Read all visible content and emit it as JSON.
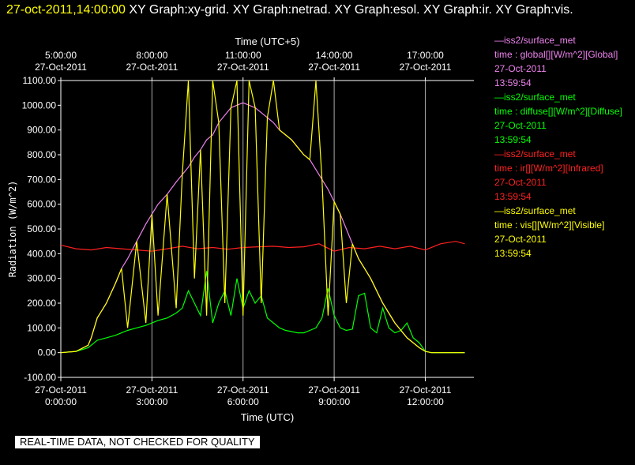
{
  "header": {
    "timestamp": "27-oct-2011,14:00:00",
    "graphs": " XY Graph:xy-grid.  XY Graph:netrad.  XY Graph:esol.  XY Graph:ir.  XY Graph:vis."
  },
  "legend": [
    {
      "source": "—iss2/surface_met",
      "field": "time : global[][W/m^2][Global]",
      "date": "27-Oct-2011",
      "time": "13:59:54",
      "color": "#ee82ee"
    },
    {
      "source": "—iss2/surface_met",
      "field": "time : diffuse[][W/m^2][Diffuse]",
      "date": "27-Oct-2011",
      "time": "13:59:54",
      "color": "#00ff00"
    },
    {
      "source": "—iss2/surface_met",
      "field": "time : ir[][W/m^2][Infrared]",
      "date": "27-Oct-2011",
      "time": "13:59:54",
      "color": "#ff2020"
    },
    {
      "source": "—iss2/surface_met",
      "field": "time : vis[][W/m^2][Visible]",
      "date": "27-Oct-2011",
      "time": "13:59:54",
      "color": "#ffff00"
    }
  ],
  "disclaimer": "REAL-TIME DATA, NOT CHECKED FOR QUALITY",
  "chart_data": {
    "type": "line",
    "ylabel": "Radiation (W/m^2)",
    "xlabel_bottom": "Time (UTC)",
    "xlabel_top": "Time (UTC+5)",
    "ylim": [
      -100,
      1100
    ],
    "xlim_hours_utc": [
      0,
      13.6
    ],
    "yticks": [
      "-100.00",
      "0.00",
      "100.00",
      "200.00",
      "300.00",
      "400.00",
      "500.00",
      "600.00",
      "700.00",
      "800.00",
      "900.00",
      "1000.00",
      "1100.00"
    ],
    "xticks_bottom": [
      {
        "date": "27-Oct-2011",
        "time": "0:00:00",
        "hour": 0
      },
      {
        "date": "27-Oct-2011",
        "time": "3:00:00",
        "hour": 3
      },
      {
        "date": "27-Oct-2011",
        "time": "6:00:00",
        "hour": 6
      },
      {
        "date": "27-Oct-2011",
        "time": "9:00:00",
        "hour": 9
      },
      {
        "date": "27-Oct-2011",
        "time": "12:00:00",
        "hour": 12
      }
    ],
    "xticks_top": [
      {
        "time": "5:00:00",
        "date": "27-Oct-2011",
        "hour": 0
      },
      {
        "time": "8:00:00",
        "date": "27-Oct-2011",
        "hour": 3
      },
      {
        "time": "11:00:00",
        "date": "27-Oct-2011",
        "hour": 6
      },
      {
        "time": "14:00:00",
        "date": "27-Oct-2011",
        "hour": 9
      },
      {
        "time": "17:00:00",
        "date": "27-Oct-2011",
        "hour": 12
      }
    ],
    "grid": true,
    "series": [
      {
        "name": "global",
        "color": "#ee82ee",
        "x": [
          0.0,
          0.5,
          0.9,
          1.0,
          1.2,
          1.5,
          1.8,
          2.0,
          2.2,
          2.5,
          2.8,
          3.0,
          3.2,
          3.5,
          3.8,
          4.0,
          4.2,
          4.4,
          4.6,
          4.8,
          5.0,
          5.2,
          5.4,
          5.6,
          5.8,
          6.0,
          6.2,
          6.4,
          6.6,
          6.8,
          7.0,
          7.2,
          7.4,
          7.6,
          7.8,
          8.0,
          8.2,
          8.4,
          8.6,
          8.8,
          9.0,
          9.2,
          9.4,
          9.6,
          9.8,
          10.0,
          10.2,
          10.4,
          10.6,
          10.8,
          11.0,
          11.2,
          11.4,
          11.6,
          11.8,
          12.0,
          12.2,
          12.5,
          13.0,
          13.3
        ],
        "y": [
          0,
          5,
          30,
          60,
          140,
          200,
          280,
          340,
          380,
          450,
          520,
          560,
          600,
          640,
          690,
          720,
          750,
          790,
          820,
          860,
          880,
          930,
          960,
          990,
          1000,
          1010,
          1000,
          990,
          970,
          950,
          930,
          900,
          880,
          860,
          830,
          800,
          780,
          740,
          700,
          660,
          610,
          560,
          500,
          440,
          380,
          340,
          300,
          250,
          200,
          160,
          120,
          90,
          60,
          40,
          20,
          5,
          0,
          0,
          0,
          0
        ]
      },
      {
        "name": "diffuse",
        "color": "#00ff00",
        "x": [
          0.0,
          0.5,
          0.9,
          1.0,
          1.2,
          1.5,
          1.8,
          2.0,
          2.2,
          2.5,
          2.8,
          3.0,
          3.2,
          3.5,
          3.8,
          4.0,
          4.2,
          4.4,
          4.6,
          4.8,
          5.0,
          5.2,
          5.4,
          5.6,
          5.8,
          6.0,
          6.2,
          6.4,
          6.6,
          6.8,
          7.0,
          7.2,
          7.4,
          7.6,
          7.8,
          8.0,
          8.2,
          8.4,
          8.6,
          8.8,
          9.0,
          9.2,
          9.4,
          9.6,
          9.8,
          10.0,
          10.2,
          10.4,
          10.6,
          10.8,
          11.0,
          11.2,
          11.4,
          11.6,
          11.8,
          12.0,
          12.2,
          12.5,
          13.0,
          13.3
        ],
        "y": [
          0,
          5,
          20,
          30,
          50,
          60,
          70,
          80,
          90,
          100,
          110,
          120,
          130,
          140,
          160,
          180,
          250,
          200,
          150,
          330,
          120,
          200,
          250,
          150,
          300,
          180,
          250,
          200,
          230,
          140,
          120,
          100,
          90,
          85,
          80,
          80,
          90,
          100,
          140,
          260,
          150,
          100,
          90,
          95,
          230,
          240,
          100,
          80,
          180,
          100,
          80,
          90,
          120,
          60,
          40,
          5,
          0,
          0,
          0,
          0
        ]
      },
      {
        "name": "ir",
        "color": "#ff2020",
        "x": [
          0.0,
          0.5,
          1.0,
          1.5,
          2.0,
          2.5,
          3.0,
          3.5,
          4.0,
          4.5,
          5.0,
          5.5,
          6.0,
          6.5,
          7.0,
          7.5,
          8.0,
          8.5,
          9.0,
          9.5,
          10.0,
          10.5,
          11.0,
          11.5,
          12.0,
          12.5,
          13.0,
          13.3
        ],
        "y": [
          435,
          420,
          415,
          425,
          420,
          415,
          410,
          420,
          430,
          420,
          425,
          418,
          425,
          428,
          430,
          425,
          428,
          440,
          410,
          425,
          420,
          430,
          420,
          430,
          415,
          440,
          450,
          440
        ]
      },
      {
        "name": "vis",
        "color": "#ffff00",
        "x": [
          0.0,
          0.5,
          0.9,
          1.0,
          1.2,
          1.5,
          1.8,
          2.0,
          2.2,
          2.5,
          2.8,
          3.0,
          3.2,
          3.5,
          3.8,
          4.0,
          4.2,
          4.4,
          4.6,
          4.8,
          5.0,
          5.2,
          5.4,
          5.6,
          5.8,
          6.0,
          6.2,
          6.4,
          6.6,
          6.8,
          7.0,
          7.2,
          7.4,
          7.6,
          7.8,
          8.0,
          8.2,
          8.4,
          8.6,
          8.8,
          9.0,
          9.2,
          9.4,
          9.6,
          9.8,
          10.0,
          10.2,
          10.4,
          10.6,
          10.8,
          11.0,
          11.2,
          11.4,
          11.6,
          11.8,
          12.0,
          12.2,
          12.5,
          13.0,
          13.3
        ],
        "y": [
          0,
          5,
          30,
          60,
          140,
          200,
          280,
          340,
          100,
          450,
          120,
          560,
          150,
          640,
          180,
          720,
          1100,
          300,
          820,
          150,
          1100,
          930,
          200,
          990,
          1100,
          150,
          1100,
          990,
          200,
          950,
          1100,
          900,
          880,
          860,
          830,
          800,
          780,
          1100,
          700,
          150,
          610,
          560,
          200,
          440,
          380,
          340,
          300,
          250,
          200,
          160,
          120,
          90,
          60,
          40,
          20,
          5,
          0,
          0,
          0,
          0
        ]
      }
    ]
  }
}
